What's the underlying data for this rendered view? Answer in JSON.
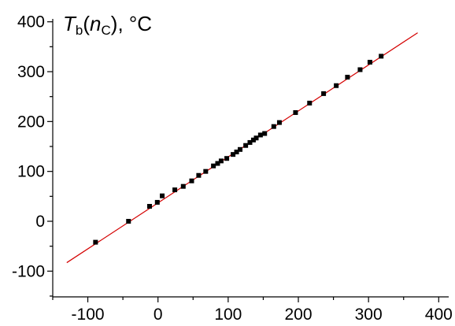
{
  "chart_data": {
    "type": "scatter",
    "title": "",
    "xlabel": "",
    "ylabel": {
      "T": "T",
      "b": "b",
      "open": "(",
      "n": "n",
      "C": "C",
      "rest": "), °C"
    },
    "xlim": [
      -150,
      400
    ],
    "ylim": [
      -150,
      400
    ],
    "x_ticks": [
      -100,
      0,
      100,
      200,
      300,
      400
    ],
    "x_tick_labels": [
      "-100",
      "0",
      "100",
      "200",
      "300",
      "400"
    ],
    "y_ticks": [
      -100,
      0,
      100,
      200,
      300,
      400
    ],
    "y_tick_labels": [
      "-100",
      "0",
      "100",
      "200",
      "300",
      "400"
    ],
    "grid": false,
    "series": [
      {
        "kind": "points",
        "color": "#000000",
        "marker": "square",
        "x": [
          -89,
          -42,
          -12,
          -1,
          6,
          24,
          36,
          48,
          58,
          68,
          79,
          85,
          90,
          98,
          107,
          112,
          117,
          125,
          131,
          136,
          140,
          146,
          152,
          165,
          173,
          196,
          216,
          236,
          254,
          270,
          288,
          302,
          318
        ],
        "y": [
          -42,
          0,
          30,
          38,
          51,
          63,
          70,
          81,
          92,
          100,
          111,
          116,
          121,
          126,
          134,
          139,
          144,
          152,
          158,
          163,
          167,
          173,
          176,
          190,
          198,
          218,
          237,
          256,
          272,
          289,
          304,
          319,
          331
        ]
      },
      {
        "kind": "fit-line",
        "color": "#d40000",
        "x": [
          -130,
          370
        ],
        "y": [
          -83,
          378
        ]
      }
    ]
  }
}
